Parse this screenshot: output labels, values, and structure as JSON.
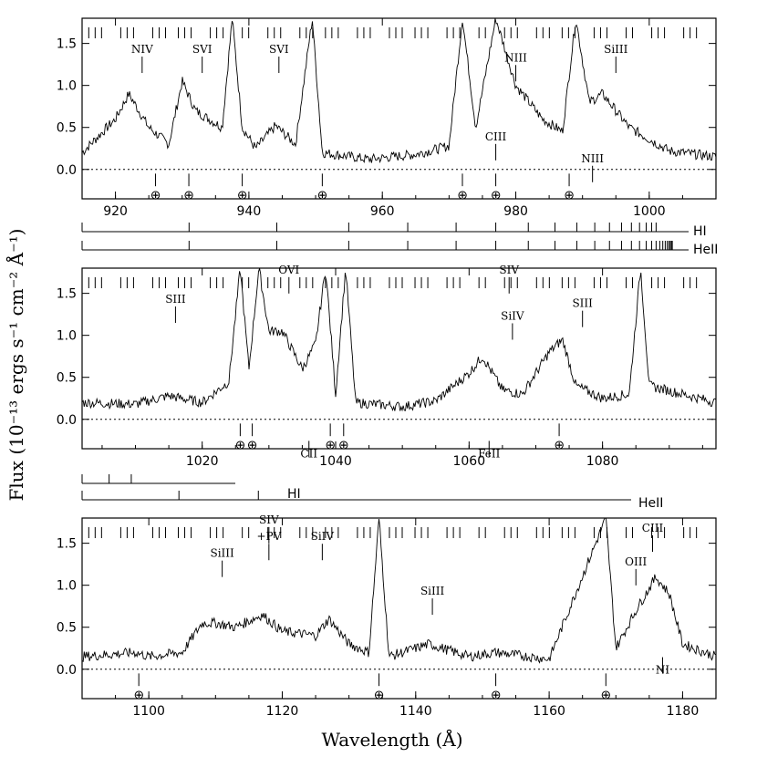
{
  "chart_data": {
    "type": "line",
    "ylabel": "Flux (10⁻¹³ ergs s⁻¹ cm⁻² Å⁻¹)",
    "xlabel": "Wavelength (Å)",
    "panels": [
      {
        "xlim": [
          915,
          1010
        ],
        "ylim": [
          -0.35,
          1.8
        ],
        "xticks": [
          920,
          940,
          960,
          980,
          1000
        ],
        "yticks": [
          0.0,
          0.5,
          1.0,
          1.5
        ],
        "ytick_labels": [
          "0.0",
          "0.5",
          "1.0",
          "1.5"
        ],
        "spectrum": [
          [
            915,
            0.2
          ],
          [
            920,
            0.6
          ],
          [
            922,
            0.9
          ],
          [
            925,
            0.5
          ],
          [
            928,
            0.3
          ],
          [
            930,
            1.05
          ],
          [
            932,
            0.7
          ],
          [
            936,
            0.5
          ],
          [
            937.5,
            1.8
          ],
          [
            939,
            0.5
          ],
          [
            941,
            0.25
          ],
          [
            944,
            0.52
          ],
          [
            947,
            0.3
          ],
          [
            949.5,
            1.8
          ],
          [
            951,
            0.2
          ],
          [
            958,
            0.12
          ],
          [
            965,
            0.18
          ],
          [
            970,
            0.28
          ],
          [
            972,
            1.8
          ],
          [
            974,
            0.5
          ],
          [
            977,
            1.8
          ],
          [
            980,
            1.0
          ],
          [
            984,
            0.6
          ],
          [
            987,
            0.45
          ],
          [
            989,
            1.8
          ],
          [
            991,
            0.8
          ],
          [
            993,
            0.9
          ],
          [
            997,
            0.5
          ],
          [
            1003,
            0.22
          ],
          [
            1010,
            0.15
          ]
        ],
        "line_labels": [
          {
            "text": "NIV",
            "x": 924,
            "y": 1.3,
            "anchor": "above"
          },
          {
            "text": "SVI",
            "x": 933,
            "y": 1.3,
            "anchor": "above"
          },
          {
            "text": "SVI",
            "x": 944.5,
            "y": 1.3,
            "anchor": "above"
          },
          {
            "text": "NIII",
            "x": 980,
            "y": 1.2,
            "anchor": "above"
          },
          {
            "text": "CIII",
            "x": 977,
            "y": 0.26,
            "anchor": "above"
          },
          {
            "text": "SiIII",
            "x": 995,
            "y": 1.3,
            "anchor": "above"
          },
          {
            "text": "NIII",
            "x": 991.5,
            "y": 0.0,
            "anchor": "above"
          }
        ],
        "earth_markers": [
          926,
          931,
          939,
          951,
          972,
          977,
          988
        ]
      },
      {
        "xlim": [
          1002,
          1097
        ],
        "ylim": [
          -0.35,
          1.8
        ],
        "xticks": [
          1020,
          1040,
          1060,
          1080
        ],
        "yticks": [
          0.0,
          0.5,
          1.0,
          1.5
        ],
        "ytick_labels": [
          "0.0",
          "0.5",
          "1.0",
          "1.5"
        ],
        "spectrum": [
          [
            1002,
            0.2
          ],
          [
            1010,
            0.18
          ],
          [
            1015,
            0.28
          ],
          [
            1020,
            0.2
          ],
          [
            1024,
            0.45
          ],
          [
            1025.7,
            1.8
          ],
          [
            1027,
            0.6
          ],
          [
            1028.5,
            1.8
          ],
          [
            1030,
            1.05
          ],
          [
            1032,
            1.05
          ],
          [
            1035,
            0.6
          ],
          [
            1037,
            0.9
          ],
          [
            1038.5,
            1.8
          ],
          [
            1040,
            0.3
          ],
          [
            1041.5,
            1.8
          ],
          [
            1043,
            0.2
          ],
          [
            1050,
            0.15
          ],
          [
            1055,
            0.22
          ],
          [
            1060,
            0.55
          ],
          [
            1062,
            0.75
          ],
          [
            1065,
            0.35
          ],
          [
            1068,
            0.3
          ],
          [
            1072,
            0.8
          ],
          [
            1074,
            0.95
          ],
          [
            1076,
            0.4
          ],
          [
            1080,
            0.25
          ],
          [
            1084,
            0.3
          ],
          [
            1085.7,
            1.8
          ],
          [
            1087,
            0.4
          ],
          [
            1097,
            0.2
          ]
        ],
        "line_labels": [
          {
            "text": "SIII",
            "x": 1016,
            "y": 1.3,
            "anchor": "above"
          },
          {
            "text": "OVI",
            "x": 1033,
            "y": 1.65,
            "anchor": "above"
          },
          {
            "text": "SIV",
            "x": 1066,
            "y": 1.65,
            "anchor": "above"
          },
          {
            "text": "SiIV",
            "x": 1066.5,
            "y": 1.1,
            "anchor": "above"
          },
          {
            "text": "SIII",
            "x": 1077,
            "y": 1.25,
            "anchor": "above"
          },
          {
            "text": "CII",
            "x": 1036,
            "y": -0.3,
            "anchor": "below"
          },
          {
            "text": "FeII",
            "x": 1063,
            "y": -0.3,
            "anchor": "below"
          }
        ],
        "earth_markers": [
          1025.7,
          1027.5,
          1039.2,
          1041.2,
          1073.5
        ]
      },
      {
        "xlim": [
          1090,
          1185
        ],
        "ylim": [
          -0.35,
          1.8
        ],
        "xticks": [
          1100,
          1120,
          1140,
          1160,
          1180
        ],
        "yticks": [
          0.0,
          0.5,
          1.0,
          1.5
        ],
        "ytick_labels": [
          "0.0",
          "0.5",
          "1.0",
          "1.5"
        ],
        "spectrum": [
          [
            1090,
            0.15
          ],
          [
            1098,
            0.2
          ],
          [
            1100,
            0.15
          ],
          [
            1105,
            0.2
          ],
          [
            1108,
            0.55
          ],
          [
            1110,
            0.55
          ],
          [
            1113,
            0.5
          ],
          [
            1117,
            0.65
          ],
          [
            1120,
            0.45
          ],
          [
            1125,
            0.4
          ],
          [
            1127,
            0.6
          ],
          [
            1130,
            0.3
          ],
          [
            1133,
            0.2
          ],
          [
            1134.5,
            1.8
          ],
          [
            1136,
            0.15
          ],
          [
            1142,
            0.3
          ],
          [
            1148,
            0.15
          ],
          [
            1152,
            0.2
          ],
          [
            1160,
            0.12
          ],
          [
            1168.5,
            1.8
          ],
          [
            1170,
            0.25
          ],
          [
            1173,
            0.7
          ],
          [
            1176,
            1.1
          ],
          [
            1178,
            0.9
          ],
          [
            1180,
            0.3
          ],
          [
            1185,
            0.15
          ]
        ],
        "line_labels": [
          {
            "text": "SiIII",
            "x": 1111,
            "y": 1.25,
            "anchor": "above"
          },
          {
            "text": "SIV",
            "x": 1118,
            "y": 1.65,
            "anchor": "above"
          },
          {
            "text": "+PV",
            "x": 1118,
            "y": 1.45,
            "anchor": "above"
          },
          {
            "text": "SiIV",
            "x": 1126,
            "y": 1.45,
            "anchor": "above"
          },
          {
            "text": "SiIII",
            "x": 1142.5,
            "y": 0.8,
            "anchor": "above"
          },
          {
            "text": "OIII",
            "x": 1173,
            "y": 1.15,
            "anchor": "above"
          },
          {
            "text": "CIII",
            "x": 1175.5,
            "y": 1.55,
            "anchor": "above"
          },
          {
            "text": "NI",
            "x": 1177,
            "y": 0.1,
            "anchor": "below"
          }
        ],
        "earth_markers": [
          1098.5,
          1134.5,
          1152,
          1168.5
        ]
      }
    ],
    "series_labels": [
      {
        "text": "HI"
      },
      {
        "text": "HeII"
      },
      {
        "text": "HI"
      },
      {
        "text": "HeII"
      }
    ],
    "earth_symbol": "⊕"
  }
}
